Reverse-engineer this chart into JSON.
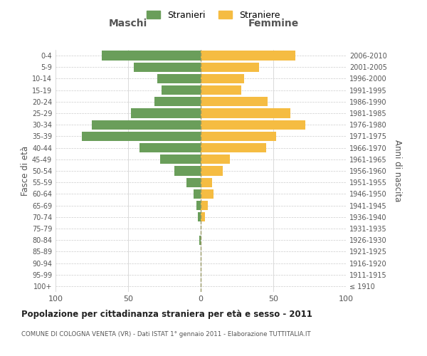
{
  "age_groups": [
    "100+",
    "95-99",
    "90-94",
    "85-89",
    "80-84",
    "75-79",
    "70-74",
    "65-69",
    "60-64",
    "55-59",
    "50-54",
    "45-49",
    "40-44",
    "35-39",
    "30-34",
    "25-29",
    "20-24",
    "15-19",
    "10-14",
    "5-9",
    "0-4"
  ],
  "birth_years": [
    "≤ 1910",
    "1911-1915",
    "1916-1920",
    "1921-1925",
    "1926-1930",
    "1931-1935",
    "1936-1940",
    "1941-1945",
    "1946-1950",
    "1951-1955",
    "1956-1960",
    "1961-1965",
    "1966-1970",
    "1971-1975",
    "1976-1980",
    "1981-1985",
    "1986-1990",
    "1991-1995",
    "1996-2000",
    "2001-2005",
    "2006-2010"
  ],
  "maschi": [
    0,
    0,
    0,
    0,
    1,
    0,
    2,
    3,
    5,
    10,
    18,
    28,
    42,
    82,
    75,
    48,
    32,
    27,
    30,
    46,
    68
  ],
  "femmine": [
    0,
    0,
    0,
    0,
    0,
    0,
    3,
    5,
    9,
    8,
    15,
    20,
    45,
    52,
    72,
    62,
    46,
    28,
    30,
    40,
    65
  ],
  "male_color": "#6a9e5a",
  "female_color": "#f5bc42",
  "grid_color": "#cccccc",
  "axis_color": "#888888",
  "label_color": "#555555",
  "xlim": 100,
  "title": "Popolazione per cittadinanza straniera per età e sesso - 2011",
  "subtitle": "COMUNE DI COLOGNA VENETA (VR) - Dati ISTAT 1° gennaio 2011 - Elaborazione TUTTITALIA.IT",
  "legend_maschi": "Stranieri",
  "legend_femmine": "Straniere",
  "xlabel_left": "Maschi",
  "xlabel_right": "Femmine",
  "ylabel_left": "Fasce di età",
  "ylabel_right": "Anni di nascita",
  "background_color": "#ffffff"
}
